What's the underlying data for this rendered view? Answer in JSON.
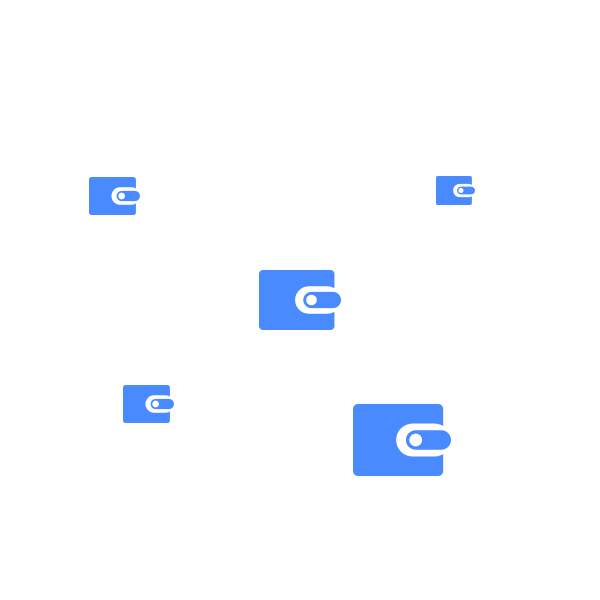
{
  "scene": {
    "accent_color": "#4a8aff",
    "background_color": "#ffffff",
    "icons": [
      {
        "name": "wallet-icon"
      },
      {
        "name": "wallet-icon"
      },
      {
        "name": "wallet-icon"
      },
      {
        "name": "wallet-icon"
      },
      {
        "name": "wallet-icon"
      }
    ]
  }
}
